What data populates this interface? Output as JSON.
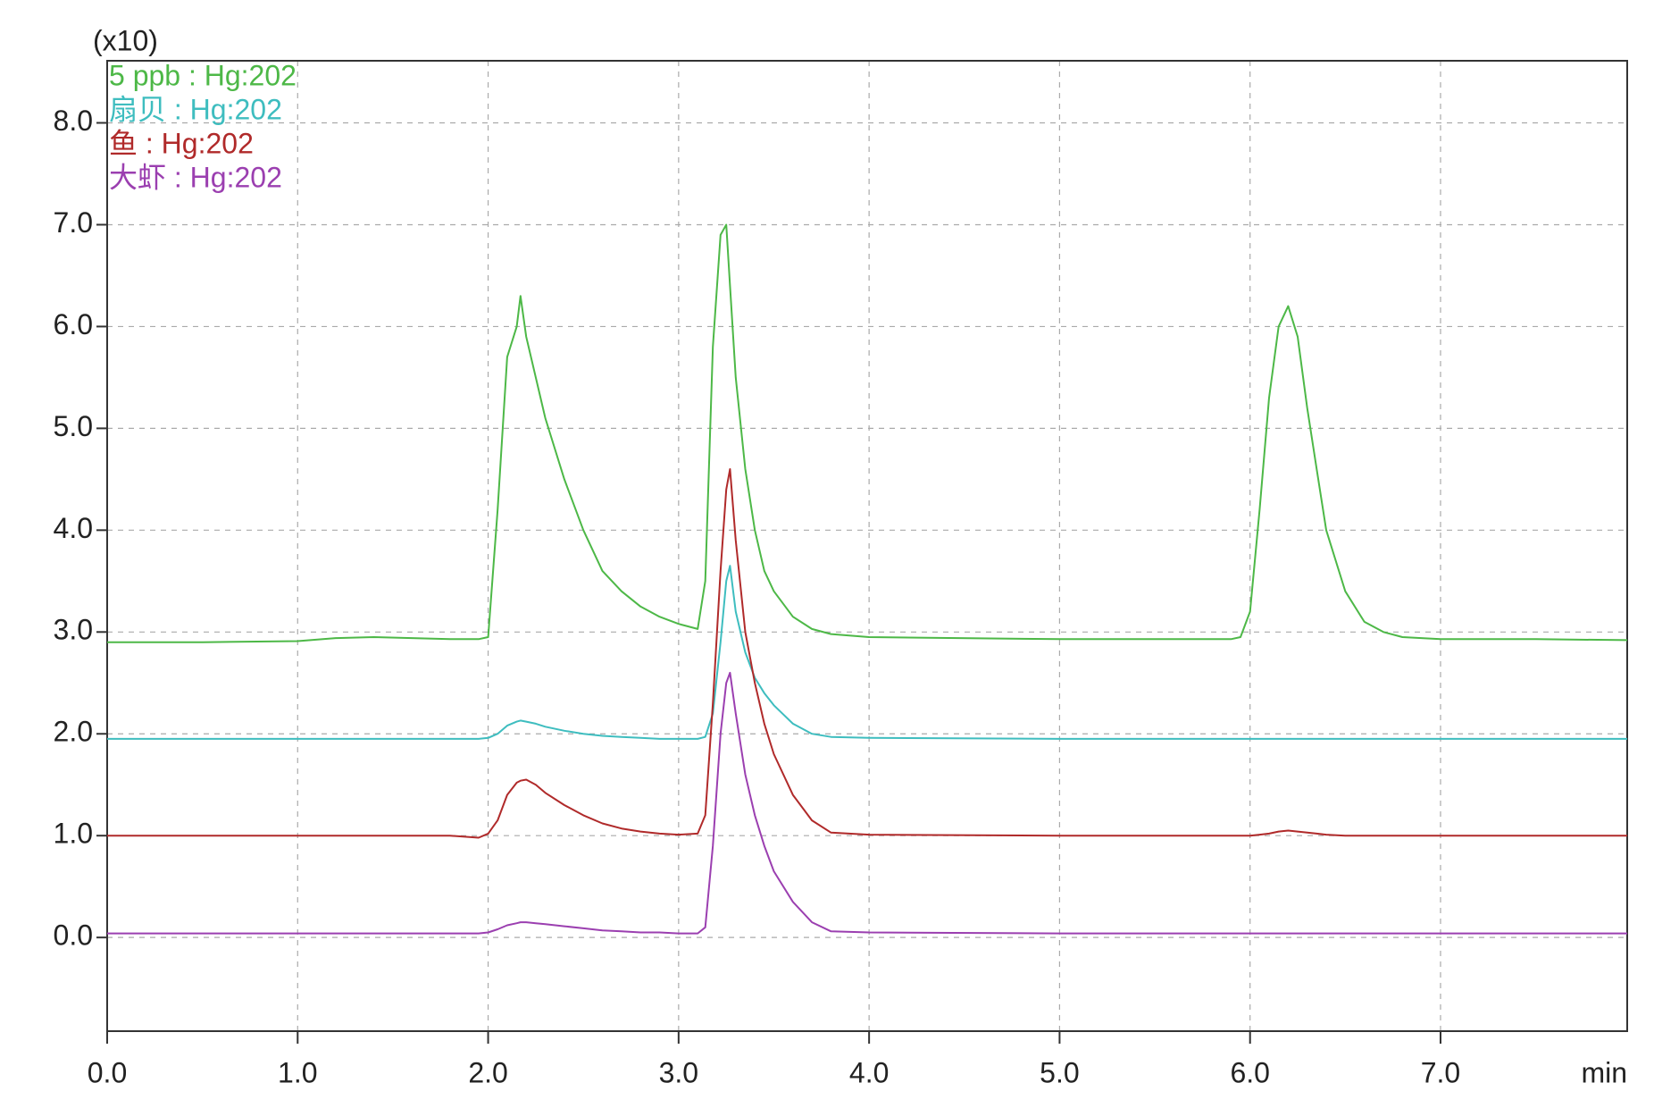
{
  "chart_data": {
    "type": "line",
    "y_multiplier": "(x10)",
    "x_label": "min",
    "x": [
      0,
      0.5,
      1.0,
      1.2,
      1.4,
      1.6,
      1.8,
      1.95,
      2.0,
      2.05,
      2.1,
      2.15,
      2.17,
      2.2,
      2.25,
      2.3,
      2.4,
      2.5,
      2.6,
      2.7,
      2.8,
      2.9,
      3.0,
      3.1,
      3.14,
      3.18,
      3.22,
      3.25,
      3.27,
      3.3,
      3.35,
      3.4,
      3.45,
      3.5,
      3.6,
      3.7,
      3.8,
      4.0,
      5.0,
      5.9,
      5.95,
      6.0,
      6.05,
      6.1,
      6.15,
      6.2,
      6.25,
      6.3,
      6.35,
      6.4,
      6.5,
      6.6,
      6.7,
      6.8,
      7.0,
      7.5,
      7.98
    ],
    "series": [
      {
        "name": "5 ppb : Hg:202",
        "color": "#4db847",
        "values": [
          2.9,
          2.9,
          2.91,
          2.94,
          2.95,
          2.94,
          2.93,
          2.93,
          2.95,
          4.2,
          5.7,
          6.0,
          6.3,
          5.9,
          5.5,
          5.1,
          4.5,
          4.0,
          3.6,
          3.4,
          3.25,
          3.15,
          3.08,
          3.03,
          3.5,
          5.8,
          6.9,
          7.0,
          6.4,
          5.5,
          4.6,
          4.0,
          3.6,
          3.4,
          3.15,
          3.03,
          2.98,
          2.95,
          2.93,
          2.93,
          2.95,
          3.2,
          4.2,
          5.3,
          6.0,
          6.2,
          5.9,
          5.2,
          4.6,
          4.0,
          3.4,
          3.1,
          3.0,
          2.95,
          2.93,
          2.93,
          2.92
        ]
      },
      {
        "name": "扇贝 : Hg:202",
        "color": "#3ebdbf",
        "values": [
          1.95,
          1.95,
          1.95,
          1.95,
          1.95,
          1.95,
          1.95,
          1.95,
          1.96,
          2.0,
          2.08,
          2.12,
          2.13,
          2.12,
          2.1,
          2.07,
          2.03,
          2.0,
          1.98,
          1.97,
          1.96,
          1.95,
          1.95,
          1.95,
          1.97,
          2.2,
          2.9,
          3.5,
          3.65,
          3.2,
          2.8,
          2.55,
          2.4,
          2.28,
          2.1,
          2.0,
          1.97,
          1.96,
          1.95,
          1.95,
          1.95,
          1.95,
          1.95,
          1.95,
          1.95,
          1.95,
          1.95,
          1.95,
          1.95,
          1.95,
          1.95,
          1.95,
          1.95,
          1.95,
          1.95,
          1.95,
          1.95
        ]
      },
      {
        "name": "鱼 : Hg:202",
        "color": "#b02a2a",
        "values": [
          1.0,
          1.0,
          1.0,
          1.0,
          1.0,
          1.0,
          1.0,
          0.98,
          1.02,
          1.15,
          1.4,
          1.52,
          1.54,
          1.55,
          1.5,
          1.42,
          1.3,
          1.2,
          1.12,
          1.07,
          1.04,
          1.02,
          1.01,
          1.02,
          1.2,
          2.3,
          3.6,
          4.4,
          4.6,
          3.9,
          3.0,
          2.5,
          2.1,
          1.8,
          1.4,
          1.15,
          1.03,
          1.01,
          1.0,
          1.0,
          1.0,
          1.0,
          1.01,
          1.02,
          1.04,
          1.05,
          1.04,
          1.03,
          1.02,
          1.01,
          1.0,
          1.0,
          1.0,
          1.0,
          1.0,
          1.0,
          1.0
        ]
      },
      {
        "name": "大虾 : Hg:202",
        "color": "#9b3fb0",
        "values": [
          0.04,
          0.04,
          0.04,
          0.04,
          0.04,
          0.04,
          0.04,
          0.04,
          0.05,
          0.08,
          0.12,
          0.14,
          0.15,
          0.15,
          0.14,
          0.13,
          0.11,
          0.09,
          0.07,
          0.06,
          0.05,
          0.05,
          0.04,
          0.04,
          0.1,
          0.9,
          2.0,
          2.5,
          2.6,
          2.2,
          1.6,
          1.2,
          0.9,
          0.65,
          0.35,
          0.15,
          0.06,
          0.05,
          0.04,
          0.04,
          0.04,
          0.04,
          0.04,
          0.04,
          0.04,
          0.04,
          0.04,
          0.04,
          0.04,
          0.04,
          0.04,
          0.04,
          0.04,
          0.04,
          0.04,
          0.04,
          0.04
        ]
      }
    ],
    "xlim": [
      0,
      7.98
    ],
    "ylim": [
      -0.92,
      8.61
    ],
    "xticks": [
      {
        "value": 0,
        "label": "0.0"
      },
      {
        "value": 1,
        "label": "1.0"
      },
      {
        "value": 2,
        "label": "2.0"
      },
      {
        "value": 3,
        "label": "3.0"
      },
      {
        "value": 4,
        "label": "4.0"
      },
      {
        "value": 5,
        "label": "5.0"
      },
      {
        "value": 6,
        "label": "6.0"
      },
      {
        "value": 7,
        "label": "7.0"
      }
    ],
    "yticks": [
      {
        "value": 0,
        "label": "0.0"
      },
      {
        "value": 1,
        "label": "1.0"
      },
      {
        "value": 2,
        "label": "2.0"
      },
      {
        "value": 3,
        "label": "3.0"
      },
      {
        "value": 4,
        "label": "4.0"
      },
      {
        "value": 5,
        "label": "5.0"
      },
      {
        "value": 6,
        "label": "6.0"
      },
      {
        "value": 7,
        "label": "7.0"
      },
      {
        "value": 8,
        "label": "8.0"
      }
    ],
    "grid": true,
    "legend": "top-left"
  }
}
